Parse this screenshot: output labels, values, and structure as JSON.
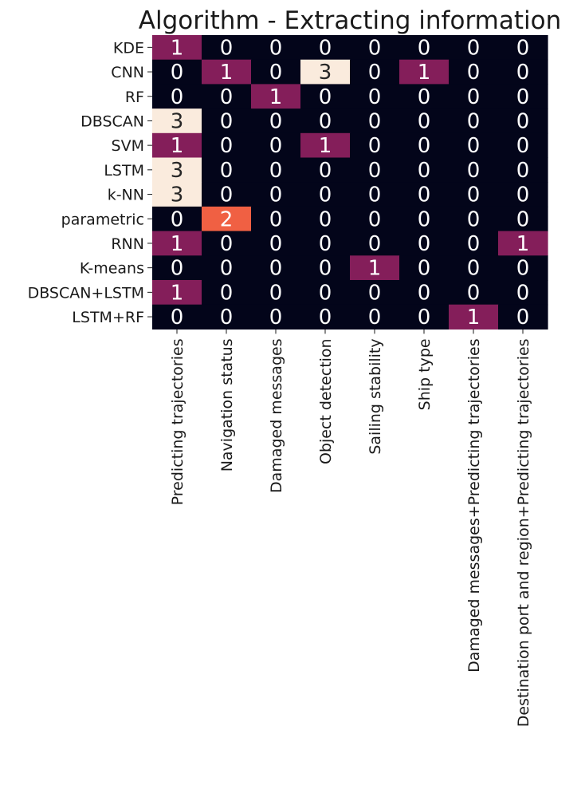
{
  "chart_data": {
    "type": "heatmap",
    "title": "Algorithm - Extracting information",
    "rows": [
      "KDE",
      "CNN",
      "RF",
      "DBSCAN",
      "SVM",
      "LSTM",
      "k-NN",
      "parametric",
      "RNN",
      "K-means",
      "DBSCAN+LSTM",
      "LSTM+RF"
    ],
    "columns": [
      "Predicting trajectories",
      "Navigation status",
      "Damaged messages",
      "Object detection",
      "Sailing stability",
      "Ship type",
      "Damaged messages+Predicting trajectories",
      "Destination port and region+Predicting trajectories"
    ],
    "values": [
      [
        1,
        0,
        0,
        0,
        0,
        0,
        0,
        0
      ],
      [
        0,
        1,
        0,
        3,
        0,
        1,
        0,
        0
      ],
      [
        0,
        0,
        1,
        0,
        0,
        0,
        0,
        0
      ],
      [
        3,
        0,
        0,
        0,
        0,
        0,
        0,
        0
      ],
      [
        1,
        0,
        0,
        1,
        0,
        0,
        0,
        0
      ],
      [
        3,
        0,
        0,
        0,
        0,
        0,
        0,
        0
      ],
      [
        3,
        0,
        0,
        0,
        0,
        0,
        0,
        0
      ],
      [
        0,
        2,
        0,
        0,
        0,
        0,
        0,
        0
      ],
      [
        1,
        0,
        0,
        0,
        0,
        0,
        0,
        1
      ],
      [
        0,
        0,
        0,
        0,
        1,
        0,
        0,
        0
      ],
      [
        1,
        0,
        0,
        0,
        0,
        0,
        0,
        0
      ],
      [
        0,
        0,
        0,
        0,
        0,
        0,
        1,
        0
      ]
    ],
    "value_range": [
      0,
      3
    ],
    "colormap": "rocket",
    "colors": {
      "0": "#03051a",
      "1": "#841e5a",
      "2": "#f06043",
      "3": "#faebdd"
    },
    "annotated": true,
    "legend": "none",
    "grid": false
  }
}
